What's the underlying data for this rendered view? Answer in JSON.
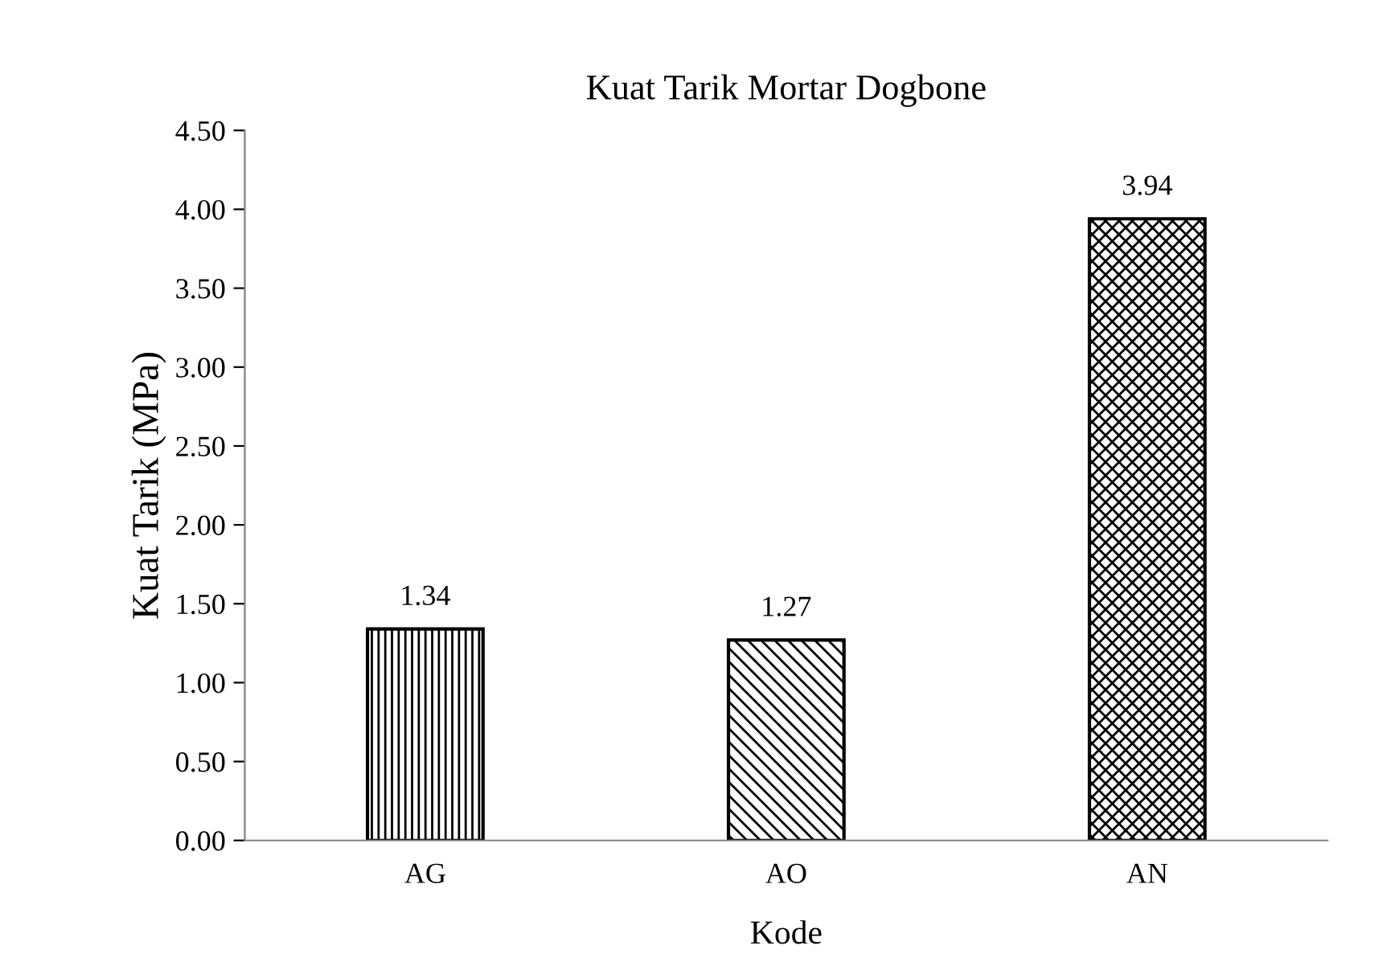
{
  "chart_data": {
    "type": "bar",
    "title": "Kuat Tarik Mortar Dogbone",
    "xlabel": "Kode",
    "ylabel": "Kuat Tarik (MPa)",
    "categories": [
      "AG",
      "AO",
      "AN"
    ],
    "values": [
      1.34,
      1.27,
      3.94
    ],
    "ylim": [
      0,
      4.5
    ],
    "yticks": [
      {
        "value": 0,
        "label": "0.00"
      },
      {
        "value": 0.5,
        "label": "0.50"
      },
      {
        "value": 1,
        "label": "1.00"
      },
      {
        "value": 1.5,
        "label": "1.50"
      },
      {
        "value": 2,
        "label": "2.00"
      },
      {
        "value": 2.5,
        "label": "2.50"
      },
      {
        "value": 3,
        "label": "3.00"
      },
      {
        "value": 3.5,
        "label": "3.50"
      },
      {
        "value": 4,
        "label": "4.00"
      },
      {
        "value": 4.5,
        "label": "4.50"
      }
    ],
    "grid": false,
    "legend": false,
    "data_labels": true
  }
}
